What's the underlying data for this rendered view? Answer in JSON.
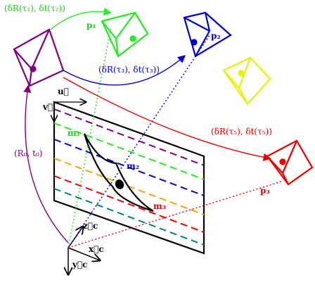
{
  "labels": {
    "transform_tau2": "(δR(τ₂), δt(τ₂))",
    "transform_tau3": "(δR(τ₃), δt(τ₃))",
    "transform_tau5": "(δR(τ₅), δt(τ₅))",
    "transform_initial": "(R₀, t₀)",
    "p1": "p₁",
    "p2": "p₂",
    "p3": "p₃",
    "m1": "m₁",
    "m2": "m₂",
    "m3": "m₃",
    "u_axis": "u⃗",
    "v_axis": "v⃗",
    "x_axis": "x⃗c",
    "y_axis": "y⃗c",
    "z_axis": "z⃗c"
  },
  "colors": {
    "purple": "#800080",
    "green": "#22ee22",
    "blue": "#0000dd",
    "yellow": "#eeee00",
    "red": "#ee0000",
    "teal": "#008080",
    "orange": "#ffa500",
    "black": "#000000"
  }
}
